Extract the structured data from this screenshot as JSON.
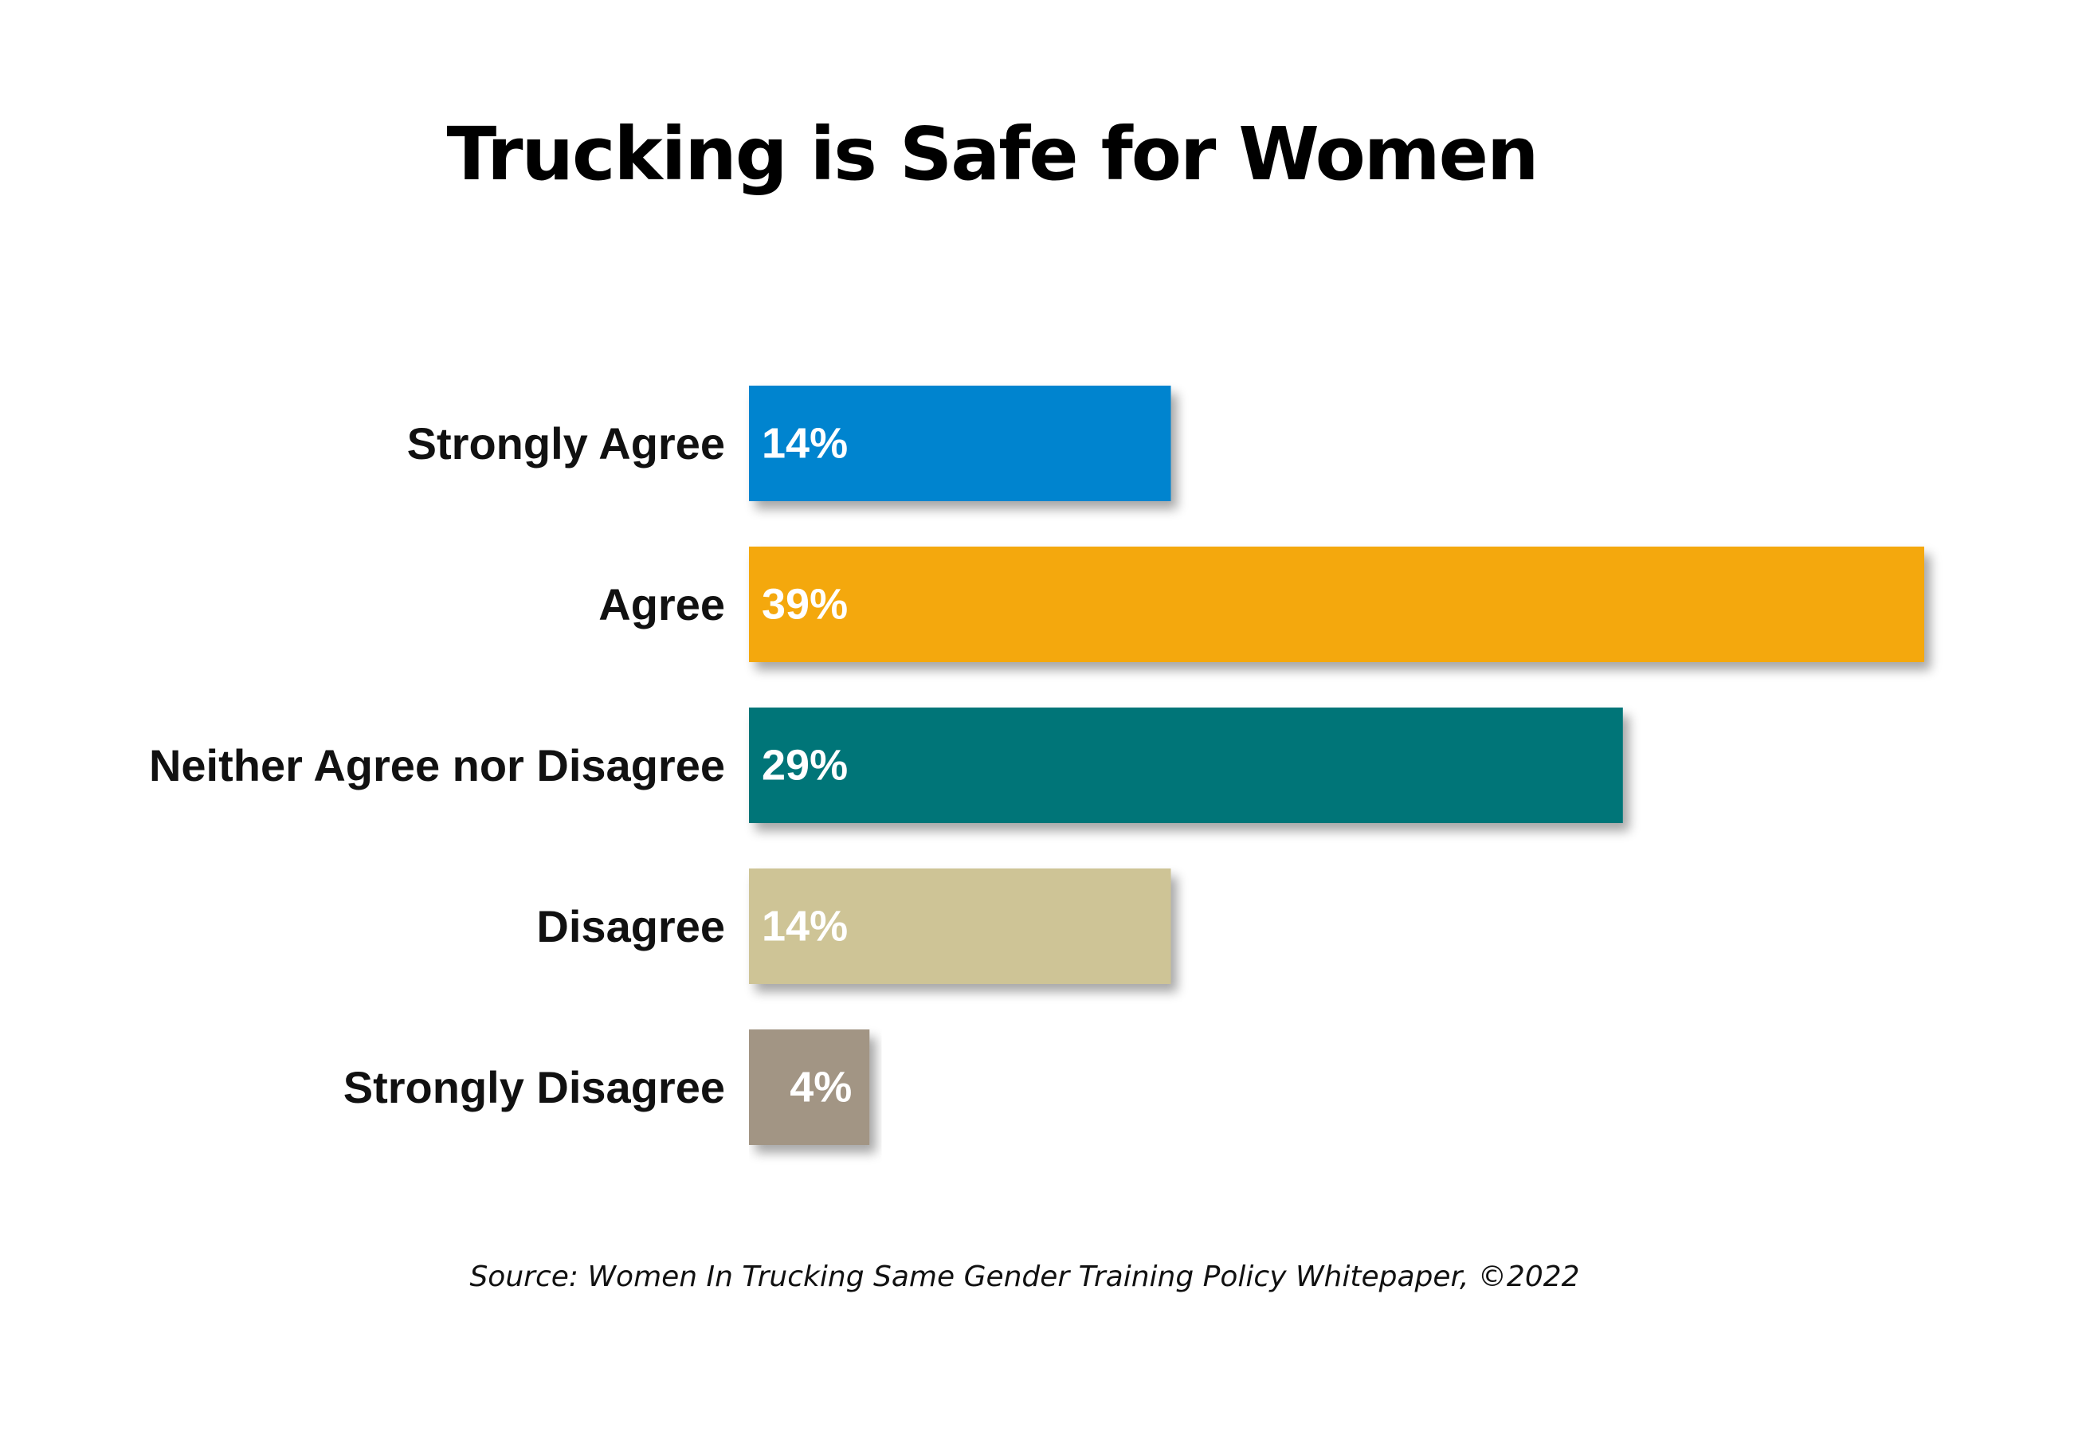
{
  "chart_data": {
    "type": "bar",
    "orientation": "horizontal",
    "title": "Trucking is Safe for Women",
    "categories": [
      "Strongly Agree",
      "Agree",
      "Neither Agree nor Disagree",
      "Disagree",
      "Strongly Disagree"
    ],
    "values": [
      14,
      39,
      29,
      14,
      4
    ],
    "value_labels": [
      "14%",
      "39%",
      "29%",
      "14%",
      "4%"
    ],
    "colors": [
      "#0084CF",
      "#F4A808",
      "#037478",
      "#CEC496",
      "#A29584"
    ],
    "xlim": [
      0,
      39
    ],
    "grid": false,
    "legend": "none"
  },
  "source": "Source: Women In Trucking Same Gender Training Policy Whitepaper, ©2022"
}
